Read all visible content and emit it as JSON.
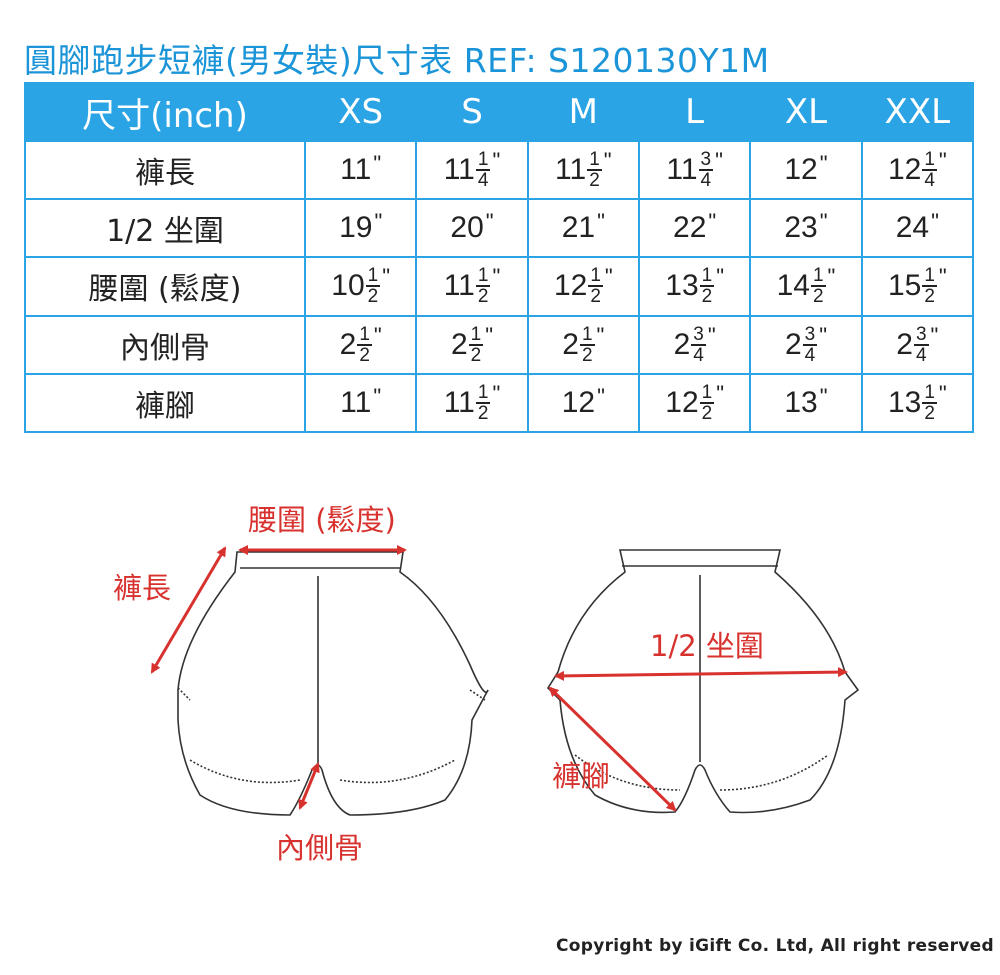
{
  "title": "圓腳跑步短褲(男女裝)尺寸表 REF: S120130Y1M",
  "table": {
    "header": [
      "尺寸(inch)",
      "XS",
      "S",
      "M",
      "L",
      "XL",
      "XXL"
    ],
    "rows": [
      {
        "label": "褲長",
        "cells": [
          {
            "w": "11",
            "n": "",
            "d": ""
          },
          {
            "w": "11",
            "n": "1",
            "d": "4"
          },
          {
            "w": "11",
            "n": "1",
            "d": "2"
          },
          {
            "w": "11",
            "n": "3",
            "d": "4"
          },
          {
            "w": "12",
            "n": "",
            "d": ""
          },
          {
            "w": "12",
            "n": "1",
            "d": "4"
          }
        ]
      },
      {
        "label": "1/2 坐圍",
        "cells": [
          {
            "w": "19",
            "n": "",
            "d": ""
          },
          {
            "w": "20",
            "n": "",
            "d": ""
          },
          {
            "w": "21",
            "n": "",
            "d": ""
          },
          {
            "w": "22",
            "n": "",
            "d": ""
          },
          {
            "w": "23",
            "n": "",
            "d": ""
          },
          {
            "w": "24",
            "n": "",
            "d": ""
          }
        ]
      },
      {
        "label": "腰圍 (鬆度)",
        "cells": [
          {
            "w": "10",
            "n": "1",
            "d": "2"
          },
          {
            "w": "11",
            "n": "1",
            "d": "2"
          },
          {
            "w": "12",
            "n": "1",
            "d": "2"
          },
          {
            "w": "13",
            "n": "1",
            "d": "2"
          },
          {
            "w": "14",
            "n": "1",
            "d": "2"
          },
          {
            "w": "15",
            "n": "1",
            "d": "2"
          }
        ]
      },
      {
        "label": "內側骨",
        "cells": [
          {
            "w": "2",
            "n": "1",
            "d": "2"
          },
          {
            "w": "2",
            "n": "1",
            "d": "2"
          },
          {
            "w": "2",
            "n": "1",
            "d": "2"
          },
          {
            "w": "2",
            "n": "3",
            "d": "4"
          },
          {
            "w": "2",
            "n": "3",
            "d": "4"
          },
          {
            "w": "2",
            "n": "3",
            "d": "4"
          }
        ]
      },
      {
        "label": "褲腳",
        "cells": [
          {
            "w": "11",
            "n": "",
            "d": ""
          },
          {
            "w": "11",
            "n": "1",
            "d": "2"
          },
          {
            "w": "12",
            "n": "",
            "d": ""
          },
          {
            "w": "12",
            "n": "1",
            "d": "2"
          },
          {
            "w": "13",
            "n": "",
            "d": ""
          },
          {
            "w": "13",
            "n": "1",
            "d": "2"
          }
        ]
      }
    ],
    "inch_mark": "\""
  },
  "diagram": {
    "front_labels": {
      "waist": "腰圍 (鬆度)",
      "length": "褲長",
      "inseam": "內側骨"
    },
    "back_labels": {
      "hip": "1/2 坐圍",
      "leg_opening": "褲腳"
    }
  },
  "colors": {
    "accent": "#2aa4e4",
    "title": "#1b95d8",
    "annotation": "#d8322f"
  },
  "copyright": "Copyright by iGift Co. Ltd, All right reserved"
}
